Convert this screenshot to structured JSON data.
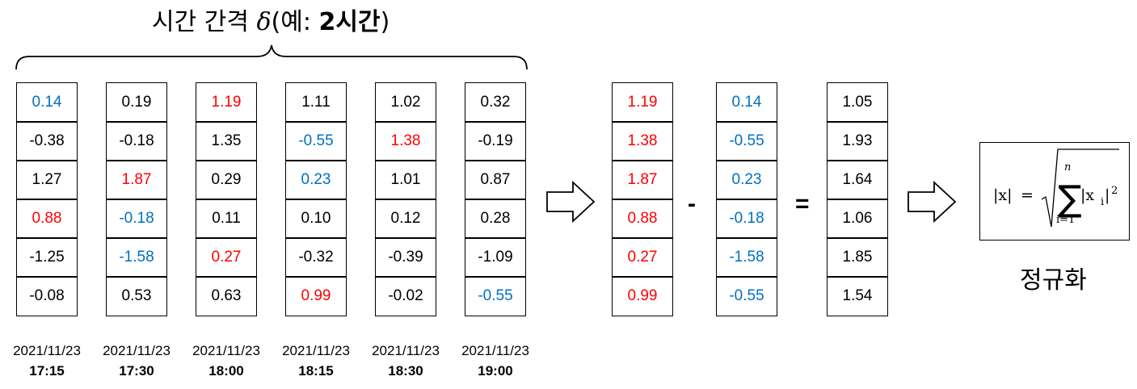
{
  "title": {
    "prefix": "시간 간격 ",
    "delta": "δ",
    "paren_open": "(예: ",
    "example_bold": "2시간",
    "paren_close": ")"
  },
  "columns": [
    {
      "timestamp_date": "2021/11/23",
      "timestamp_time": "17:15",
      "values": [
        {
          "v": "0.14",
          "c": "blue"
        },
        {
          "v": "-0.38",
          "c": ""
        },
        {
          "v": "1.27",
          "c": ""
        },
        {
          "v": "0.88",
          "c": "red"
        },
        {
          "v": "-1.25",
          "c": ""
        },
        {
          "v": "-0.08",
          "c": ""
        }
      ]
    },
    {
      "timestamp_date": "2021/11/23",
      "timestamp_time": "17:30",
      "values": [
        {
          "v": "0.19",
          "c": ""
        },
        {
          "v": "-0.18",
          "c": ""
        },
        {
          "v": "1.87",
          "c": "red"
        },
        {
          "v": "-0.18",
          "c": "blue"
        },
        {
          "v": "-1.58",
          "c": "blue"
        },
        {
          "v": "0.53",
          "c": ""
        }
      ]
    },
    {
      "timestamp_date": "2021/11/23",
      "timestamp_time": "18:00",
      "values": [
        {
          "v": "1.19",
          "c": "red"
        },
        {
          "v": "1.35",
          "c": ""
        },
        {
          "v": "0.29",
          "c": ""
        },
        {
          "v": "0.11",
          "c": ""
        },
        {
          "v": "0.27",
          "c": "red"
        },
        {
          "v": "0.63",
          "c": ""
        }
      ]
    },
    {
      "timestamp_date": "2021/11/23",
      "timestamp_time": "18:15",
      "values": [
        {
          "v": "1.11",
          "c": ""
        },
        {
          "v": "-0.55",
          "c": "blue"
        },
        {
          "v": "0.23",
          "c": "blue"
        },
        {
          "v": "0.10",
          "c": ""
        },
        {
          "v": "-0.32",
          "c": ""
        },
        {
          "v": "0.99",
          "c": "red"
        }
      ]
    },
    {
      "timestamp_date": "2021/11/23",
      "timestamp_time": "18:30",
      "values": [
        {
          "v": "1.02",
          "c": ""
        },
        {
          "v": "1.38",
          "c": "red"
        },
        {
          "v": "1.01",
          "c": ""
        },
        {
          "v": "0.12",
          "c": ""
        },
        {
          "v": "-0.39",
          "c": ""
        },
        {
          "v": "-0.02",
          "c": ""
        }
      ]
    },
    {
      "timestamp_date": "2021/11/23",
      "timestamp_time": "19:00",
      "values": [
        {
          "v": "0.32",
          "c": ""
        },
        {
          "v": "-0.19",
          "c": ""
        },
        {
          "v": "0.87",
          "c": ""
        },
        {
          "v": "0.28",
          "c": ""
        },
        {
          "v": "-1.09",
          "c": ""
        },
        {
          "v": "-0.55",
          "c": "blue"
        }
      ]
    }
  ],
  "max_column": {
    "values": [
      {
        "v": "1.19",
        "c": "red"
      },
      {
        "v": "1.38",
        "c": "red"
      },
      {
        "v": "1.87",
        "c": "red"
      },
      {
        "v": "0.88",
        "c": "red"
      },
      {
        "v": "0.27",
        "c": "red"
      },
      {
        "v": "0.99",
        "c": "red"
      }
    ]
  },
  "min_column": {
    "values": [
      {
        "v": "0.14",
        "c": "blue"
      },
      {
        "v": "-0.55",
        "c": "blue"
      },
      {
        "v": "0.23",
        "c": "blue"
      },
      {
        "v": "-0.18",
        "c": "blue"
      },
      {
        "v": "-1.58",
        "c": "blue"
      },
      {
        "v": "-0.55",
        "c": "blue"
      }
    ]
  },
  "result_column": {
    "values": [
      {
        "v": "1.05",
        "c": ""
      },
      {
        "v": "1.93",
        "c": ""
      },
      {
        "v": "1.64",
        "c": ""
      },
      {
        "v": "1.06",
        "c": ""
      },
      {
        "v": "1.85",
        "c": ""
      },
      {
        "v": "1.54",
        "c": ""
      }
    ]
  },
  "operators": {
    "minus": "-",
    "equals": "="
  },
  "formula": {
    "lhs": "|x|",
    "eq": "=",
    "sum_upper": "n",
    "sum_lower": "i=1",
    "term_base": "|x",
    "term_sub": "i",
    "term_close": "|",
    "term_exp": "2"
  },
  "normalize_label": "정규화",
  "colors": {
    "red": "#ff0000",
    "blue": "#0070c0",
    "border": "#000000"
  }
}
